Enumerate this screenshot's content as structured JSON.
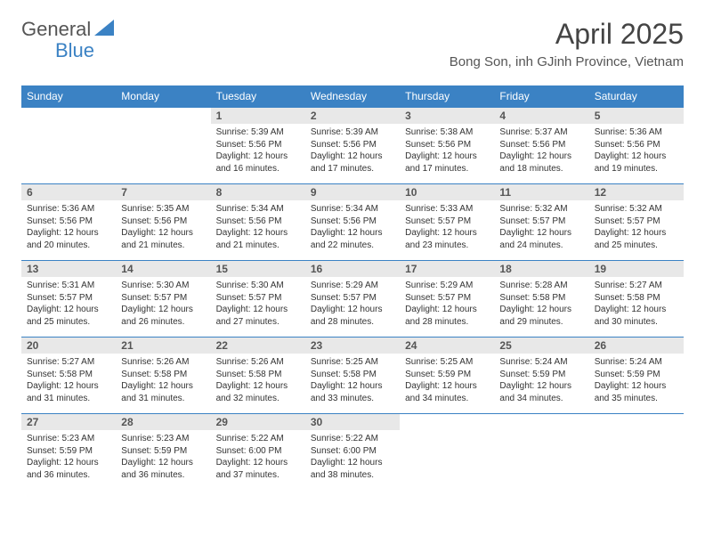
{
  "logo": {
    "textA": "General",
    "textB": "Blue"
  },
  "title": "April 2025",
  "subtitle": "Bong Son, inh GJinh Province, Vietnam",
  "colors": {
    "header_bg": "#3b82c4",
    "header_text": "#ffffff",
    "daynum_bg": "#e8e8e8",
    "border": "#3b82c4"
  },
  "dayNames": [
    "Sunday",
    "Monday",
    "Tuesday",
    "Wednesday",
    "Thursday",
    "Friday",
    "Saturday"
  ],
  "weeks": [
    [
      null,
      null,
      {
        "n": "1",
        "sr": "5:39 AM",
        "ss": "5:56 PM",
        "dl": "12 hours and 16 minutes."
      },
      {
        "n": "2",
        "sr": "5:39 AM",
        "ss": "5:56 PM",
        "dl": "12 hours and 17 minutes."
      },
      {
        "n": "3",
        "sr": "5:38 AM",
        "ss": "5:56 PM",
        "dl": "12 hours and 17 minutes."
      },
      {
        "n": "4",
        "sr": "5:37 AM",
        "ss": "5:56 PM",
        "dl": "12 hours and 18 minutes."
      },
      {
        "n": "5",
        "sr": "5:36 AM",
        "ss": "5:56 PM",
        "dl": "12 hours and 19 minutes."
      }
    ],
    [
      {
        "n": "6",
        "sr": "5:36 AM",
        "ss": "5:56 PM",
        "dl": "12 hours and 20 minutes."
      },
      {
        "n": "7",
        "sr": "5:35 AM",
        "ss": "5:56 PM",
        "dl": "12 hours and 21 minutes."
      },
      {
        "n": "8",
        "sr": "5:34 AM",
        "ss": "5:56 PM",
        "dl": "12 hours and 21 minutes."
      },
      {
        "n": "9",
        "sr": "5:34 AM",
        "ss": "5:56 PM",
        "dl": "12 hours and 22 minutes."
      },
      {
        "n": "10",
        "sr": "5:33 AM",
        "ss": "5:57 PM",
        "dl": "12 hours and 23 minutes."
      },
      {
        "n": "11",
        "sr": "5:32 AM",
        "ss": "5:57 PM",
        "dl": "12 hours and 24 minutes."
      },
      {
        "n": "12",
        "sr": "5:32 AM",
        "ss": "5:57 PM",
        "dl": "12 hours and 25 minutes."
      }
    ],
    [
      {
        "n": "13",
        "sr": "5:31 AM",
        "ss": "5:57 PM",
        "dl": "12 hours and 25 minutes."
      },
      {
        "n": "14",
        "sr": "5:30 AM",
        "ss": "5:57 PM",
        "dl": "12 hours and 26 minutes."
      },
      {
        "n": "15",
        "sr": "5:30 AM",
        "ss": "5:57 PM",
        "dl": "12 hours and 27 minutes."
      },
      {
        "n": "16",
        "sr": "5:29 AM",
        "ss": "5:57 PM",
        "dl": "12 hours and 28 minutes."
      },
      {
        "n": "17",
        "sr": "5:29 AM",
        "ss": "5:57 PM",
        "dl": "12 hours and 28 minutes."
      },
      {
        "n": "18",
        "sr": "5:28 AM",
        "ss": "5:58 PM",
        "dl": "12 hours and 29 minutes."
      },
      {
        "n": "19",
        "sr": "5:27 AM",
        "ss": "5:58 PM",
        "dl": "12 hours and 30 minutes."
      }
    ],
    [
      {
        "n": "20",
        "sr": "5:27 AM",
        "ss": "5:58 PM",
        "dl": "12 hours and 31 minutes."
      },
      {
        "n": "21",
        "sr": "5:26 AM",
        "ss": "5:58 PM",
        "dl": "12 hours and 31 minutes."
      },
      {
        "n": "22",
        "sr": "5:26 AM",
        "ss": "5:58 PM",
        "dl": "12 hours and 32 minutes."
      },
      {
        "n": "23",
        "sr": "5:25 AM",
        "ss": "5:58 PM",
        "dl": "12 hours and 33 minutes."
      },
      {
        "n": "24",
        "sr": "5:25 AM",
        "ss": "5:59 PM",
        "dl": "12 hours and 34 minutes."
      },
      {
        "n": "25",
        "sr": "5:24 AM",
        "ss": "5:59 PM",
        "dl": "12 hours and 34 minutes."
      },
      {
        "n": "26",
        "sr": "5:24 AM",
        "ss": "5:59 PM",
        "dl": "12 hours and 35 minutes."
      }
    ],
    [
      {
        "n": "27",
        "sr": "5:23 AM",
        "ss": "5:59 PM",
        "dl": "12 hours and 36 minutes."
      },
      {
        "n": "28",
        "sr": "5:23 AM",
        "ss": "5:59 PM",
        "dl": "12 hours and 36 minutes."
      },
      {
        "n": "29",
        "sr": "5:22 AM",
        "ss": "6:00 PM",
        "dl": "12 hours and 37 minutes."
      },
      {
        "n": "30",
        "sr": "5:22 AM",
        "ss": "6:00 PM",
        "dl": "12 hours and 38 minutes."
      },
      null,
      null,
      null
    ]
  ],
  "labels": {
    "sunrise": "Sunrise:",
    "sunset": "Sunset:",
    "daylight": "Daylight:"
  }
}
